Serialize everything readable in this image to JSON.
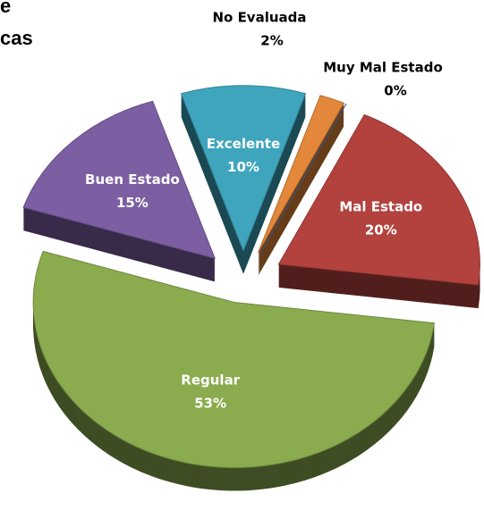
{
  "chart_data": {
    "type": "pie",
    "title": [
      "e",
      "cas"
    ],
    "categories": [
      "Excelente",
      "No Evaluada",
      "Muy Mal Estado",
      "Mal Estado",
      "Regular",
      "Buen Estado"
    ],
    "values": [
      10,
      2,
      0,
      20,
      53,
      15
    ],
    "value_labels": [
      "10%",
      "2%",
      "0%",
      "20%",
      "53%",
      "15%"
    ],
    "colors": [
      "#3fa5bd",
      "#e3873a",
      "#3e6aa6",
      "#b3423f",
      "#8bab4f",
      "#7c5fa2"
    ]
  }
}
